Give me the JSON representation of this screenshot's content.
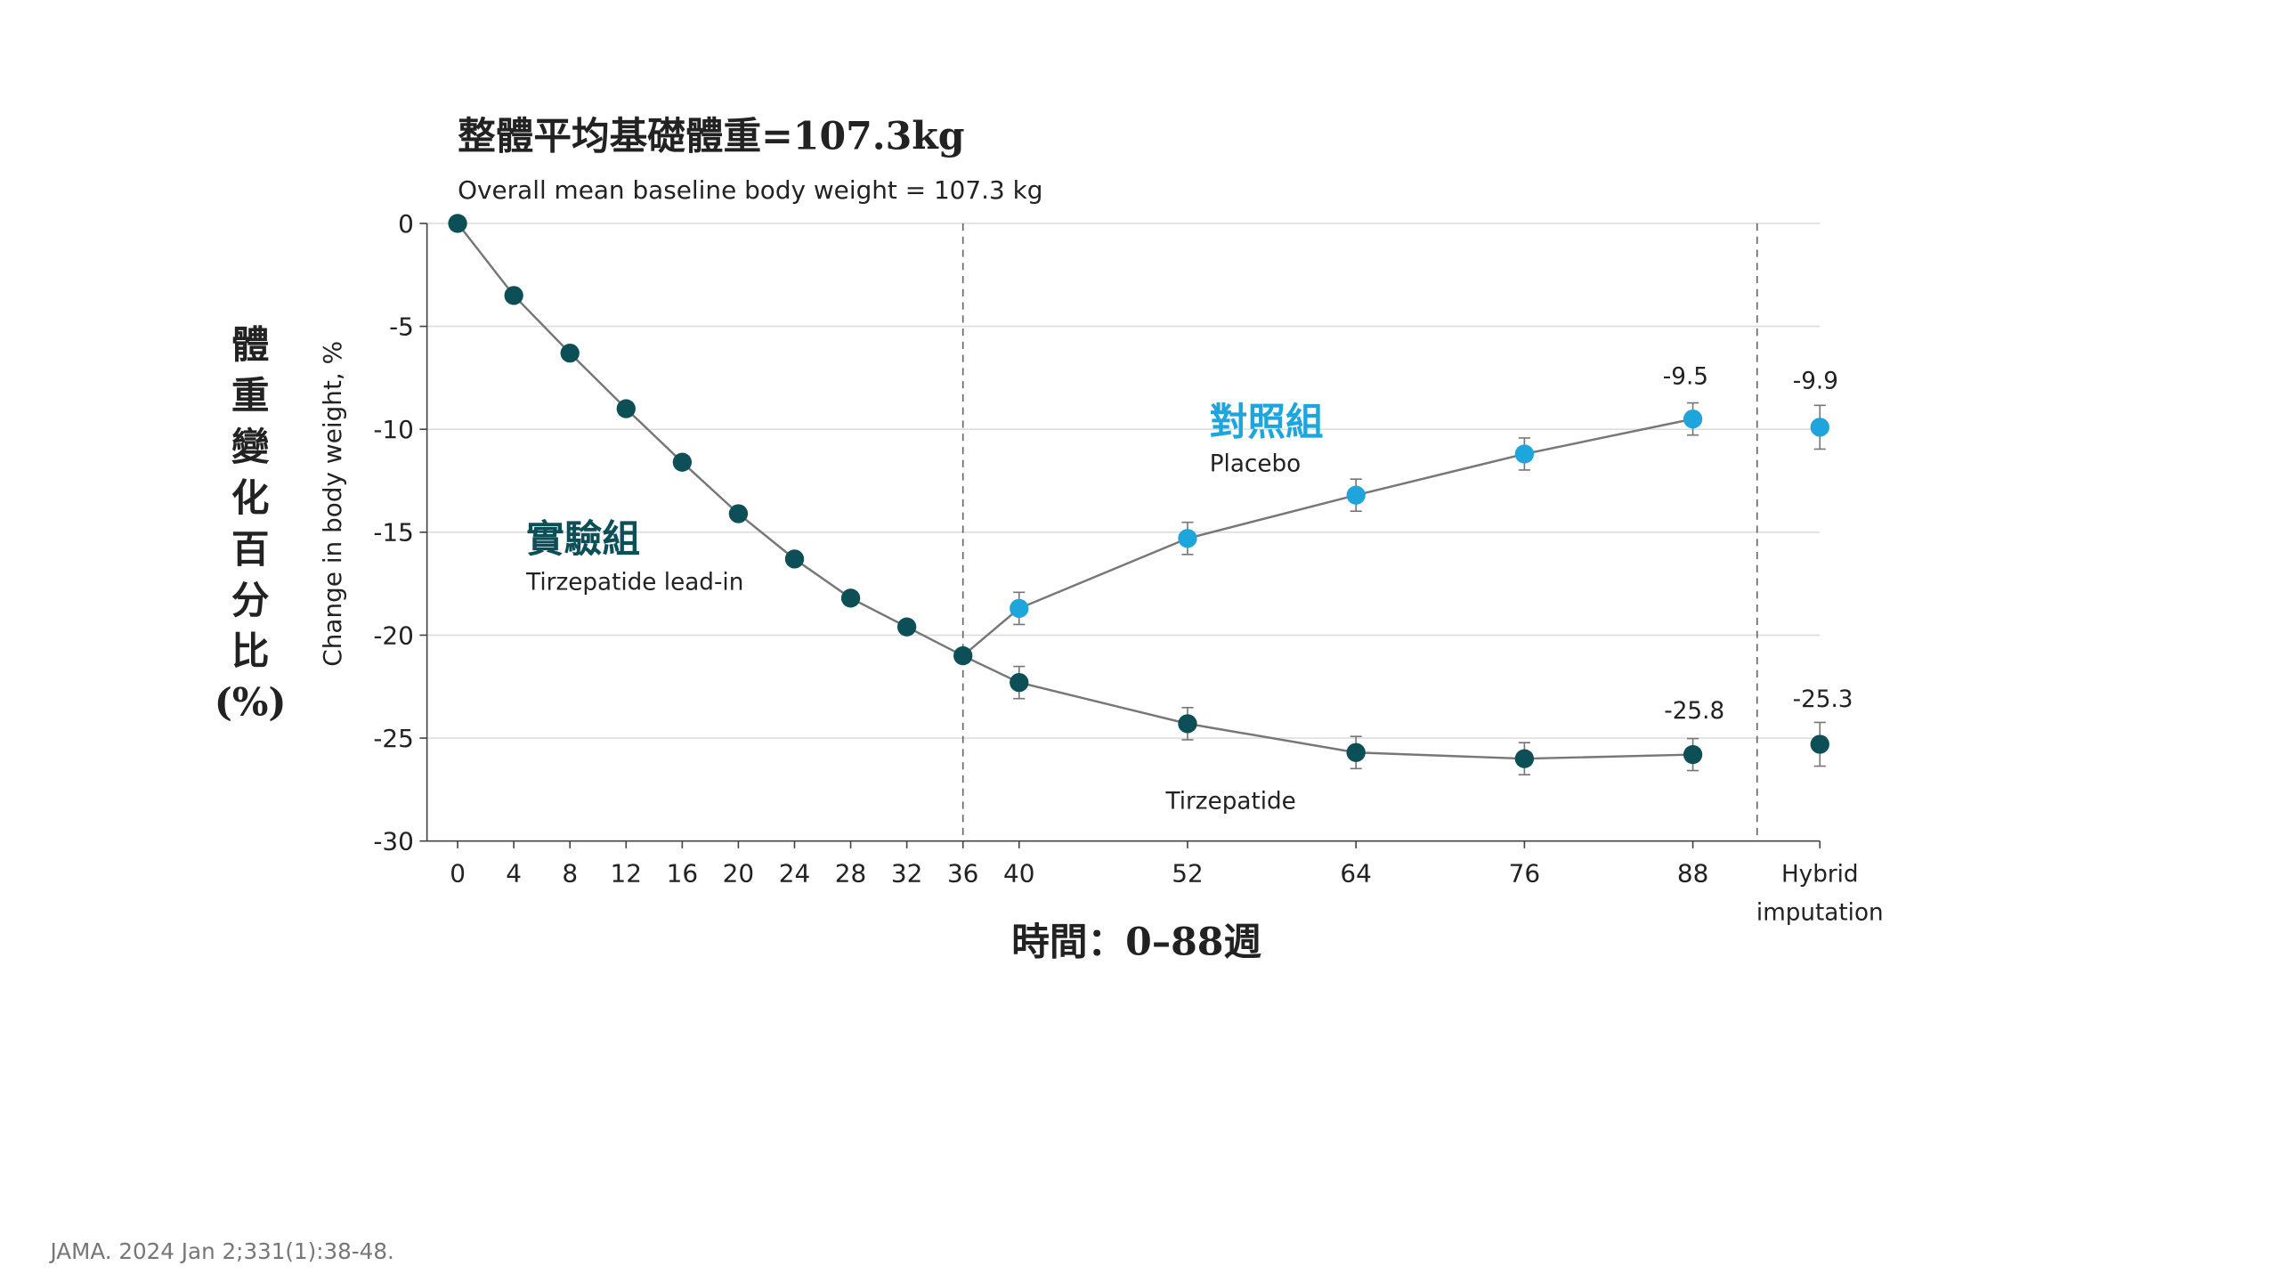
{
  "chart_data": {
    "type": "line",
    "title_cn": "整體平均基礎體重=107.3kg",
    "title": "Overall mean baseline body weight = 107.3 kg",
    "ylabel": "Change in body weight, %",
    "ylabel_cn": [
      "體",
      "重",
      "變",
      "化",
      "百",
      "分",
      "比",
      "(%)"
    ],
    "xlabel_cn": "時間：0–88週",
    "ylim": [
      -30,
      0
    ],
    "yticks": [
      0,
      -5,
      -10,
      -15,
      -20,
      -25,
      -30
    ],
    "xticks": [
      0,
      4,
      8,
      12,
      16,
      20,
      24,
      28,
      32,
      36,
      40,
      52,
      64,
      76,
      88
    ],
    "hybrid_label": [
      "Hybrid",
      "imputation"
    ],
    "grid": true,
    "series": [
      {
        "name": "Tirzepatide lead-in",
        "name_cn": "實驗組",
        "color": "#0d4f57",
        "x": [
          0,
          4,
          8,
          12,
          16,
          20,
          24,
          28,
          32,
          36
        ],
        "y": [
          0,
          -3.5,
          -6.3,
          -9.0,
          -11.6,
          -14.1,
          -16.3,
          -18.2,
          -19.6,
          -21.0
        ]
      },
      {
        "name": "Tirzepatide",
        "color": "#0d4f57",
        "x": [
          36,
          40,
          52,
          64,
          76,
          88
        ],
        "y": [
          -21.0,
          -22.3,
          -24.3,
          -25.7,
          -26.0,
          -25.8
        ],
        "hybrid": -25.3
      },
      {
        "name": "Placebo",
        "name_cn": "對照組",
        "color": "#1ea6dc",
        "x": [
          36,
          40,
          52,
          64,
          76,
          88
        ],
        "y": [
          -21.0,
          -18.7,
          -15.3,
          -13.2,
          -11.2,
          -9.5
        ],
        "hybrid": -9.9
      }
    ],
    "annotations": {
      "tirz_88": "-25.8",
      "tirz_hybrid": "-25.3",
      "plac_88": "-9.5",
      "plac_hybrid": "-9.9"
    },
    "vlines": [
      36,
      "hybrid-divider"
    ]
  },
  "citation": "JAMA. 2024 Jan 2;331(1):38-48."
}
